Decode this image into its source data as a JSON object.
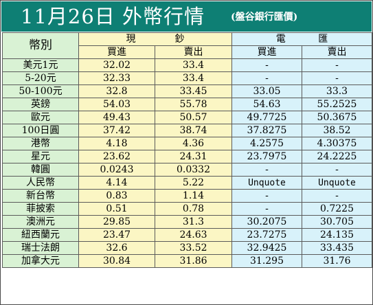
{
  "title": {
    "main": "11月26日 外幣行情",
    "source": "(盤谷銀行匯價)"
  },
  "table": {
    "currency_header": "幣別",
    "cash_header": [
      "現",
      "鈔"
    ],
    "spot_header": [
      "電",
      "匯"
    ],
    "buy_label": "買進",
    "sell_label": "賣出",
    "rows": [
      {
        "currency": "美元1元",
        "cash_buy": "32.02",
        "cash_sell": "33.4",
        "spot_buy": "-",
        "spot_sell": "-"
      },
      {
        "currency": "5-20元",
        "cash_buy": "32.33",
        "cash_sell": "33.4",
        "spot_buy": "-",
        "spot_sell": "-"
      },
      {
        "currency": "50-100元",
        "cash_buy": "32.8",
        "cash_sell": "33.45",
        "spot_buy": "33.05",
        "spot_sell": "33.3"
      },
      {
        "currency": "英鎊",
        "cash_buy": "54.03",
        "cash_sell": "55.78",
        "spot_buy": "54.63",
        "spot_sell": "55.2525"
      },
      {
        "currency": "歐元",
        "cash_buy": "49.43",
        "cash_sell": "50.57",
        "spot_buy": "49.7725",
        "spot_sell": "50.3675"
      },
      {
        "currency": "100日圓",
        "cash_buy": "37.42",
        "cash_sell": "38.74",
        "spot_buy": "37.8275",
        "spot_sell": "38.52"
      },
      {
        "currency": "港幣",
        "cash_buy": "4.18",
        "cash_sell": "4.36",
        "spot_buy": "4.2575",
        "spot_sell": "4.30375"
      },
      {
        "currency": "星元",
        "cash_buy": "23.62",
        "cash_sell": "24.31",
        "spot_buy": "23.7975",
        "spot_sell": "24.2225"
      },
      {
        "currency": "韓圓",
        "cash_buy": "0.0243",
        "cash_sell": "0.0332",
        "spot_buy": "-",
        "spot_sell": "-"
      },
      {
        "currency": "人民幣",
        "cash_buy": "4.14",
        "cash_sell": "5.22",
        "spot_buy": "Unquote",
        "spot_sell": "Unquote"
      },
      {
        "currency": "新台幣",
        "cash_buy": "0.83",
        "cash_sell": "1.14",
        "spot_buy": "-",
        "spot_sell": "-"
      },
      {
        "currency": "菲披索",
        "cash_buy": "0.51",
        "cash_sell": "0.78",
        "spot_buy": "-",
        "spot_sell": "0.7225"
      },
      {
        "currency": "澳洲元",
        "cash_buy": "29.85",
        "cash_sell": "31.3",
        "spot_buy": "30.2075",
        "spot_sell": "30.705"
      },
      {
        "currency": "紐西蘭元",
        "cash_buy": "23.47",
        "cash_sell": "24.63",
        "spot_buy": "23.7275",
        "spot_sell": "24.135"
      },
      {
        "currency": "瑞士法朗",
        "cash_buy": "32.6",
        "cash_sell": "33.52",
        "spot_buy": "32.9425",
        "spot_sell": "33.435"
      },
      {
        "currency": "加拿大元",
        "cash_buy": "30.84",
        "cash_sell": "31.86",
        "spot_buy": "31.295",
        "spot_sell": "31.76"
      }
    ]
  },
  "colors": {
    "title_background": "#0e7f74",
    "currency_column": "#d9f2d4",
    "cash_columns": "#fbf6c4",
    "spot_columns": "#d8f2fa"
  }
}
